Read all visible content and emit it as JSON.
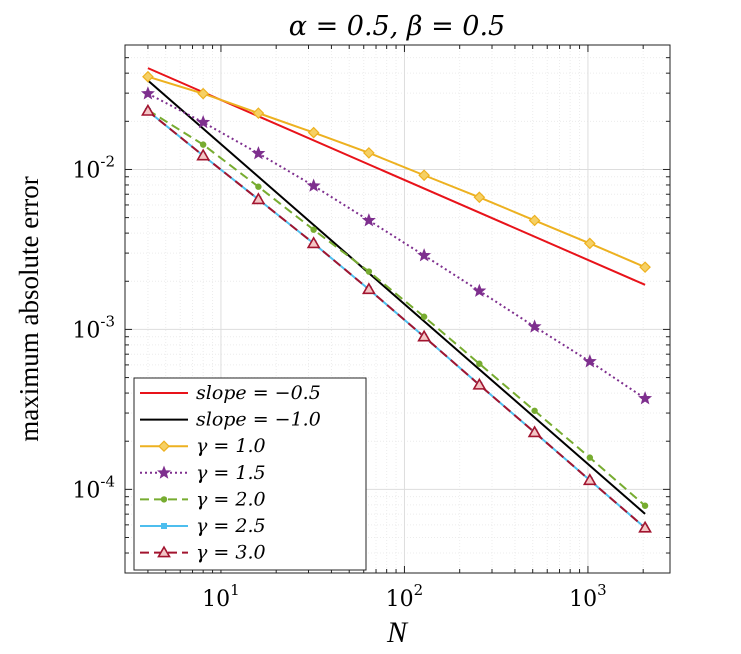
{
  "chart_data": {
    "type": "line",
    "title": "α = 0.5, β = 0.5",
    "xlabel": "N",
    "ylabel": "maximum absolute error",
    "xscale": "log",
    "yscale": "log",
    "xlim": [
      3,
      2800
    ],
    "ylim": [
      3e-05,
      0.06
    ],
    "grid": true,
    "legend_position": "bottom-left",
    "x_ticks": [
      {
        "value": 10,
        "base": "10",
        "exp": "1"
      },
      {
        "value": 100,
        "base": "10",
        "exp": "2"
      },
      {
        "value": 1000,
        "base": "10",
        "exp": "3"
      }
    ],
    "y_ticks": [
      {
        "value": 0.0001,
        "base": "10",
        "exp": "-4"
      },
      {
        "value": 0.001,
        "base": "10",
        "exp": "-3"
      },
      {
        "value": 0.01,
        "base": "10",
        "exp": "-2"
      }
    ],
    "series": [
      {
        "name": "slope = −0.5",
        "legend": "slope = −0.5",
        "color": "#e8131a",
        "dash": "",
        "marker": "none",
        "x": [
          4,
          2048
        ],
        "y": [
          0.043,
          0.0019
        ]
      },
      {
        "name": "slope = −1.0",
        "legend": "slope = −1.0",
        "color": "#000000",
        "dash": "",
        "marker": "none",
        "x": [
          4,
          2048
        ],
        "y": [
          0.036,
          7.03e-05
        ]
      },
      {
        "name": "γ = 1.0",
        "legend": "γ = 1.0",
        "color": "#edb120",
        "dash": "",
        "marker": "diamond",
        "x": [
          4,
          8,
          16,
          32,
          64,
          128,
          256,
          512,
          1024,
          2048
        ],
        "y": [
          0.038,
          0.0298,
          0.0225,
          0.017,
          0.0127,
          0.0092,
          0.0067,
          0.0048,
          0.00345,
          0.00245
        ]
      },
      {
        "name": "γ = 1.5",
        "legend": "γ = 1.5",
        "color": "#7e2f8e",
        "dash": "2,3",
        "marker": "star",
        "x": [
          4,
          8,
          16,
          32,
          64,
          128,
          256,
          512,
          1024,
          2048
        ],
        "y": [
          0.0298,
          0.0197,
          0.0126,
          0.0079,
          0.0048,
          0.0029,
          0.00174,
          0.00104,
          0.00063,
          0.00037
        ]
      },
      {
        "name": "γ = 2.0",
        "legend": "γ = 2.0",
        "color": "#77ac30",
        "dash": "9,5",
        "marker": "dot",
        "x": [
          4,
          8,
          16,
          32,
          64,
          128,
          256,
          512,
          1024,
          2048
        ],
        "y": [
          0.0235,
          0.0143,
          0.0078,
          0.0042,
          0.0023,
          0.0012,
          0.00061,
          0.00031,
          0.000158,
          7.9e-05
        ]
      },
      {
        "name": "γ = 2.5",
        "legend": "γ = 2.5",
        "color": "#4dbeee",
        "dash": "",
        "marker": "square",
        "x": [
          4,
          8,
          16,
          32,
          64,
          128,
          256,
          512,
          1024,
          2048
        ],
        "y": [
          0.0232,
          0.0122,
          0.0065,
          0.00345,
          0.00178,
          0.0009,
          0.00045,
          0.000227,
          0.000114,
          5.75e-05
        ]
      },
      {
        "name": "γ = 3.0",
        "legend": "γ = 3.0",
        "color": "#a2142f",
        "dash": "9,5",
        "marker": "triangle",
        "x": [
          4,
          8,
          16,
          32,
          64,
          128,
          256,
          512,
          1024,
          2048
        ],
        "y": [
          0.0232,
          0.0122,
          0.0065,
          0.00345,
          0.00178,
          0.0009,
          0.00045,
          0.000227,
          0.000114,
          5.75e-05
        ]
      }
    ]
  }
}
